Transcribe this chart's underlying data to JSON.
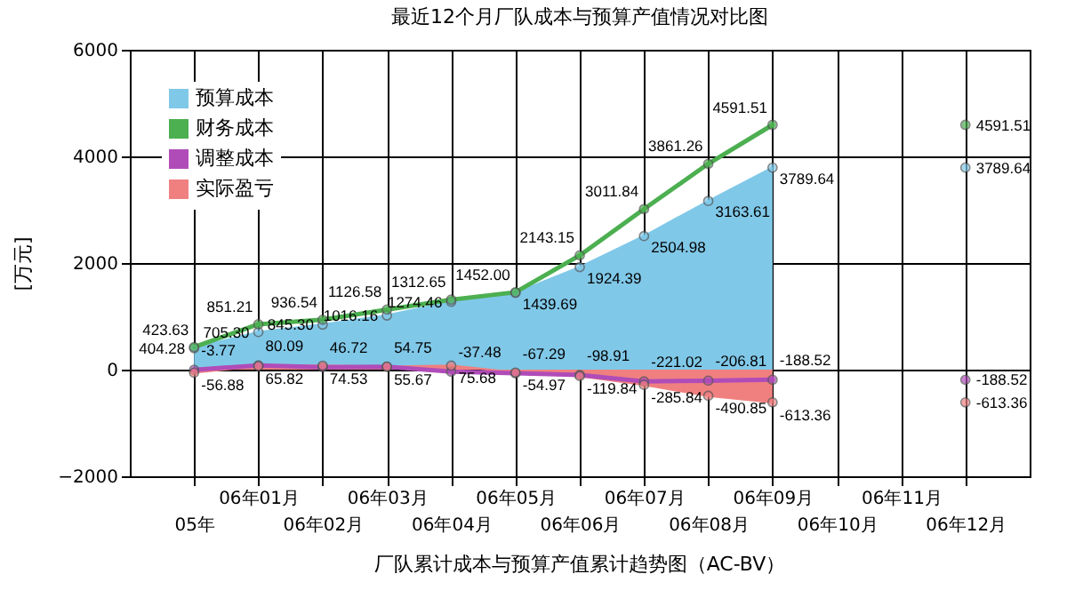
{
  "chart_data": {
    "type": "line",
    "title": "最近12个月厂队成本与预算产值情况对比图",
    "ylabel": "[万元]",
    "annotations": [
      "厂队累计成本与预算产值累计趋势图（AC-BV）"
    ],
    "categories": [
      "05年",
      "06年01月",
      "06年02月",
      "06年03月",
      "06年04月",
      "06年05月",
      "06年06月",
      "06年07月",
      "06年08月",
      "06年09月",
      "06年10月",
      "06年11月",
      "06年12月"
    ],
    "series": [
      {
        "name": "预算成本",
        "type": "area",
        "color": "#80c8e8",
        "values": [
          404.28,
          705.3,
          845.3,
          1016.16,
          1274.46,
          1439.69,
          1924.39,
          2504.98,
          3163.61,
          3789.64,
          null,
          null,
          null
        ],
        "value_labels": [
          "404.28",
          "705.30",
          "845.30",
          "1016.16",
          "1274.46",
          "1439.69",
          "1924.39",
          "2504.98",
          "3163.61",
          "3789.64",
          null,
          null,
          null
        ]
      },
      {
        "name": "财务成本",
        "color": "#4caf50",
        "values": [
          423.63,
          851.21,
          936.54,
          1126.58,
          1312.65,
          1452.0,
          2143.15,
          3011.84,
          3861.26,
          4591.51,
          null,
          null,
          null
        ],
        "value_labels": [
          "423.63",
          "851.21",
          "936.54",
          "1126.58",
          "1312.65",
          "1452.00",
          "2143.15",
          "3011.84",
          "3861.26",
          "4591.51",
          null,
          null,
          null
        ]
      },
      {
        "name": "调整成本",
        "color": "#b04cb8",
        "values": [
          -3.77,
          80.09,
          46.72,
          54.75,
          -37.48,
          -67.29,
          -98.91,
          -221.02,
          -206.81,
          -188.52,
          null,
          null,
          null
        ],
        "value_labels": [
          "-3.77",
          "80.09",
          "46.72",
          "54.75",
          "-37.48",
          "-67.29",
          "-98.91",
          "-221.02",
          "-206.81",
          "-188.52",
          null,
          null,
          null
        ]
      },
      {
        "name": "实际盈亏",
        "type": "area",
        "color": "#f08080",
        "values": [
          -56.88,
          65.82,
          74.53,
          55.67,
          75.68,
          -54.97,
          -119.84,
          -285.84,
          -490.85,
          -613.36,
          null,
          null,
          null
        ],
        "value_labels": [
          "-56.88",
          "65.82",
          "74.53",
          "55.67",
          "75.68",
          "-54.97",
          "-119.84",
          "-285.84",
          "-490.85",
          "-613.36",
          null,
          null,
          null
        ]
      },
      {
        "type": "scatter",
        "color": "#4caf50",
        "values": [
          null,
          null,
          null,
          null,
          null,
          null,
          null,
          null,
          null,
          null,
          null,
          null,
          4591.51
        ],
        "value_labels": [
          null,
          null,
          null,
          null,
          null,
          null,
          null,
          null,
          null,
          null,
          null,
          null,
          "4591.51"
        ]
      },
      {
        "type": "scatter",
        "color": "#80c8e8",
        "values": [
          null,
          null,
          null,
          null,
          null,
          null,
          null,
          null,
          null,
          null,
          null,
          null,
          3789.64
        ],
        "value_labels": [
          null,
          null,
          null,
          null,
          null,
          null,
          null,
          null,
          null,
          null,
          null,
          null,
          "3789.64"
        ]
      },
      {
        "type": "scatter",
        "color": "#b04cb8",
        "values": [
          null,
          null,
          null,
          null,
          null,
          null,
          null,
          null,
          null,
          null,
          null,
          null,
          -188.52
        ],
        "value_labels": [
          null,
          null,
          null,
          null,
          null,
          null,
          null,
          null,
          null,
          null,
          null,
          null,
          "-188.52"
        ]
      },
      {
        "type": "scatter",
        "color": "#f08080",
        "values": [
          null,
          null,
          null,
          null,
          null,
          null,
          null,
          null,
          null,
          null,
          null,
          null,
          -613.36
        ],
        "value_labels": [
          null,
          null,
          null,
          null,
          null,
          null,
          null,
          null,
          null,
          null,
          null,
          null,
          "-613.36"
        ]
      }
    ],
    "ylim": [
      -2000,
      6000
    ],
    "yticks": [
      -2000,
      0,
      2000,
      4000,
      6000
    ],
    "grid": true,
    "legend": "top left",
    "marker": "circle"
  }
}
